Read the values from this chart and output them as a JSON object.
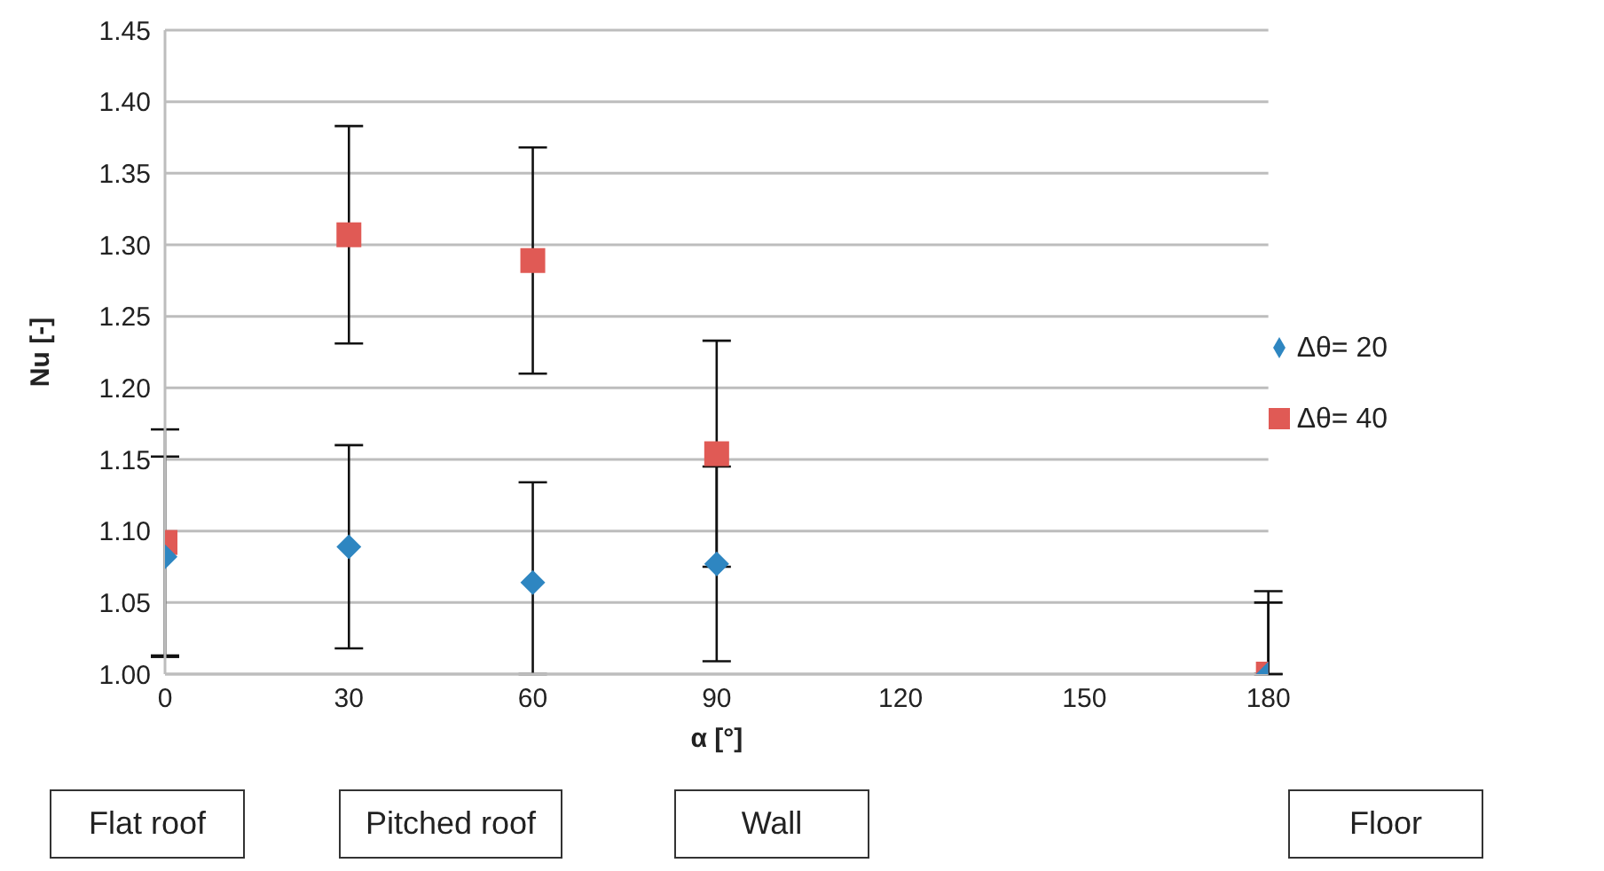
{
  "chart_data": {
    "type": "scatter",
    "xlabel": "α [°]",
    "ylabel": "Nu [-]",
    "x": [
      0,
      30,
      60,
      90,
      180
    ],
    "series": [
      {
        "name": "Δθ= 20",
        "color": "#2e86c1",
        "marker": "diamond",
        "values": [
          1.082,
          1.089,
          1.064,
          1.077,
          1.0
        ],
        "errors": [
          0.07,
          0.071,
          [
            1.0,
            1.134
          ],
          0.068,
          [
            1.0,
            1.05
          ]
        ]
      },
      {
        "name": "Δθ= 40",
        "color": "#e05a55",
        "marker": "square",
        "values": [
          1.092,
          1.307,
          1.289,
          1.154,
          1.0
        ],
        "errors": [
          0.079,
          0.076,
          0.079,
          0.079,
          [
            1.0,
            1.058
          ]
        ]
      }
    ],
    "xlim": [
      0,
      180
    ],
    "xticks": [
      0,
      30,
      60,
      90,
      120,
      150,
      180
    ],
    "ylim": [
      1.0,
      1.45
    ],
    "yticks": [
      {
        "value": 1.0,
        "label": "1.00"
      },
      "1.05",
      {
        "value": 1.1,
        "label": "1.10"
      },
      1.15,
      {
        "value": 1.2,
        "label": "1.20"
      },
      1.25,
      {
        "value": 1.3,
        "label": "1.30"
      },
      1.35,
      {
        "value": 1.4,
        "label": "1.40"
      },
      1.45
    ],
    "grid": "y",
    "legend": "right",
    "annotations": [
      "Flat roof",
      "Pitched roof",
      "Wall",
      "Floor"
    ]
  }
}
